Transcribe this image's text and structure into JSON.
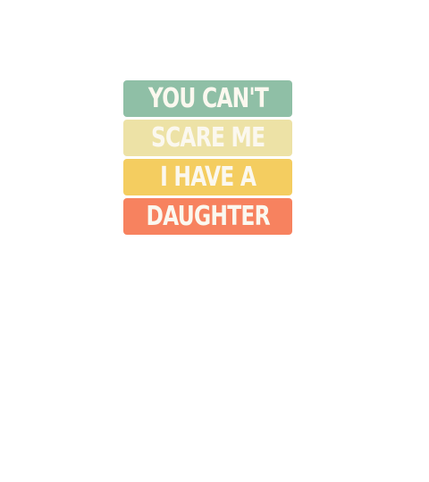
{
  "lines": [
    {
      "text": "YOU CAN'T",
      "color": "#8fbfa6"
    },
    {
      "text": "SCARE ME",
      "color": "#ede2a6"
    },
    {
      "text": "I HAVE A",
      "color": "#f4cd60"
    },
    {
      "text": "DAUGHTER",
      "color": "#f7825f"
    }
  ]
}
